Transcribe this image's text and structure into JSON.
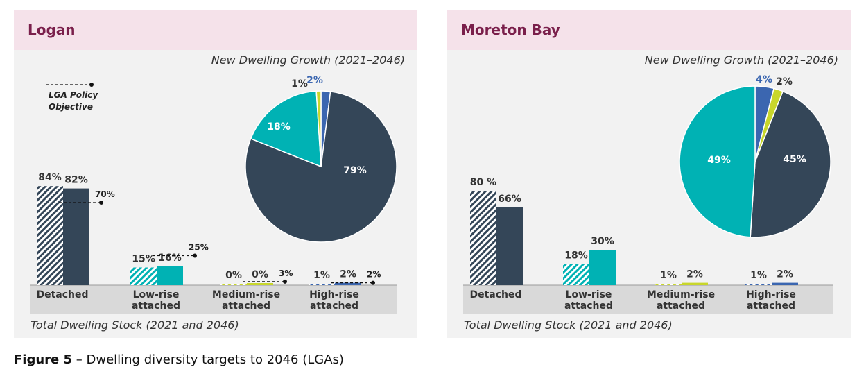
{
  "colors": {
    "dark": "#344658",
    "teal": "#00b2b4",
    "lime": "#c8d62b",
    "blue": "#3b66b0",
    "axis_band": "#d9d9d9",
    "title": "#7a1f4b"
  },
  "caption": {
    "label": "Figure 5",
    "text": " – Dwelling diversity targets to 2046 (LGAs)"
  },
  "chart_data": [
    {
      "type": "bar",
      "name": "Logan",
      "title": "Logan",
      "subtitle": "Total Dwelling Stock (2021 and 2046)",
      "categories": [
        "Detached",
        "Low-rise attached",
        "Medium-rise attached",
        "High-rise attached"
      ],
      "category_label_lines": [
        [
          "Detached"
        ],
        [
          "Low-rise",
          "attached"
        ],
        [
          "Medium-rise",
          "attached"
        ],
        [
          "High-rise",
          "attached"
        ]
      ],
      "series": [
        {
          "name": "2021",
          "values": [
            84,
            15,
            0,
            1
          ],
          "labels": [
            "84%",
            "15%",
            "0%",
            "1%"
          ]
        },
        {
          "name": "2046",
          "values": [
            82,
            16,
            0,
            2
          ],
          "labels": [
            "82%",
            "16%",
            "0%",
            "2%"
          ]
        }
      ],
      "policy_objective": {
        "legend": [
          "LGA Policy",
          "Objective"
        ],
        "values": [
          70,
          25,
          3,
          2
        ],
        "labels": [
          "70%",
          "25%",
          "3%",
          "2%"
        ]
      },
      "ylim": [
        0,
        100
      ],
      "pie": {
        "type": "pie",
        "title": "New Dwelling Growth (2021–2046)",
        "slices": [
          {
            "name": "High-rise attached",
            "value": 2,
            "label": "2%",
            "color": "blue"
          },
          {
            "name": "Detached",
            "value": 79,
            "label": "79%",
            "color": "dark"
          },
          {
            "name": "Low-rise attached",
            "value": 18,
            "label": "18%",
            "color": "teal"
          },
          {
            "name": "Medium-rise attached",
            "value": 1,
            "label": "1%",
            "color": "lime"
          }
        ]
      }
    },
    {
      "type": "bar",
      "name": "Moreton Bay",
      "title": "Moreton Bay",
      "subtitle": "Total Dwelling Stock (2021 and 2046)",
      "categories": [
        "Detached",
        "Low-rise attached",
        "Medium-rise attached",
        "High-rise attached"
      ],
      "category_label_lines": [
        [
          "Detached"
        ],
        [
          "Low-rise",
          "attached"
        ],
        [
          "Medium-rise",
          "attached"
        ],
        [
          "High-rise",
          "attached"
        ]
      ],
      "series": [
        {
          "name": "2021",
          "values": [
            80,
            18,
            1,
            1
          ],
          "labels": [
            "80 %",
            "18%",
            "1%",
            "1%"
          ]
        },
        {
          "name": "2046",
          "values": [
            66,
            30,
            2,
            2
          ],
          "labels": [
            "66%",
            "30%",
            "2%",
            "2%"
          ]
        }
      ],
      "ylim": [
        0,
        100
      ],
      "pie": {
        "type": "pie",
        "title": "New Dwelling Growth (2021–2046)",
        "slices": [
          {
            "name": "High-rise attached",
            "value": 4,
            "label": "4%",
            "color": "blue"
          },
          {
            "name": "Medium-rise attached",
            "value": 2,
            "label": "2%",
            "color": "lime"
          },
          {
            "name": "Detached",
            "value": 45,
            "label": "45%",
            "color": "dark"
          },
          {
            "name": "Low-rise attached",
            "value": 49,
            "label": "49%",
            "color": "teal"
          }
        ]
      }
    }
  ]
}
